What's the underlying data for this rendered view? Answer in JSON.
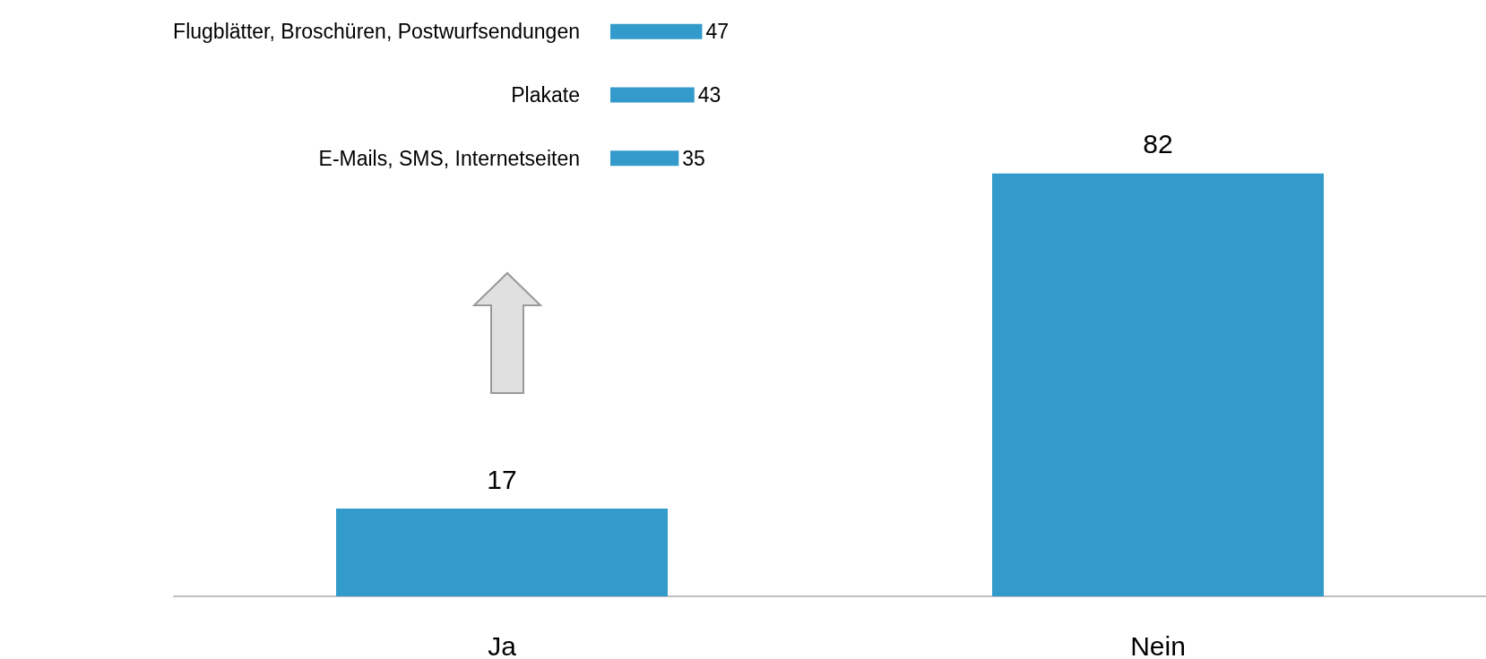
{
  "chart_data": [
    {
      "type": "bar",
      "categories": [
        "Ja",
        "Nein"
      ],
      "values": [
        17,
        82
      ],
      "color": "#339bcb",
      "data_labels": true
    },
    {
      "type": "bar",
      "orientation": "horizontal",
      "categories": [
        "Flugblätter, Broschüren, Postwurfsendungen",
        "Plakate",
        "E-Mails, SMS, Internetseiten"
      ],
      "values": [
        47,
        43,
        35
      ],
      "color": "#339bcb",
      "data_labels": true
    }
  ]
}
